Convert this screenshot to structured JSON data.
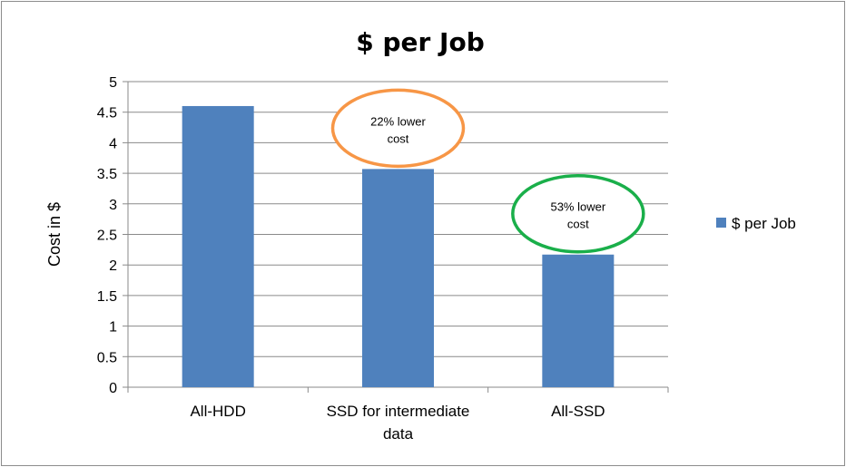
{
  "chart_data": {
    "type": "bar",
    "title": "$ per Job",
    "ylabel": "Cost in $",
    "xlabel": "",
    "categories": [
      [
        "All-HDD"
      ],
      [
        "SSD for intermediate",
        "data"
      ],
      [
        "All-SSD"
      ]
    ],
    "series": [
      {
        "name": "$ per Job",
        "values": [
          4.6,
          3.57,
          2.17
        ],
        "color": "#4f81bd"
      }
    ],
    "ylim": [
      0,
      5
    ],
    "yticks": [
      "0",
      "0.5",
      "1",
      "1.5",
      "2",
      "2.5",
      "3",
      "3.5",
      "4",
      "4.5",
      "5"
    ],
    "grid": true,
    "legend_position": "right",
    "annotations": [
      {
        "category_index": 1,
        "lines": [
          "22% lower",
          "cost"
        ],
        "color": "#f79646"
      },
      {
        "category_index": 2,
        "lines": [
          "53% lower",
          "cost"
        ],
        "color": "#1aaf4a"
      }
    ]
  }
}
